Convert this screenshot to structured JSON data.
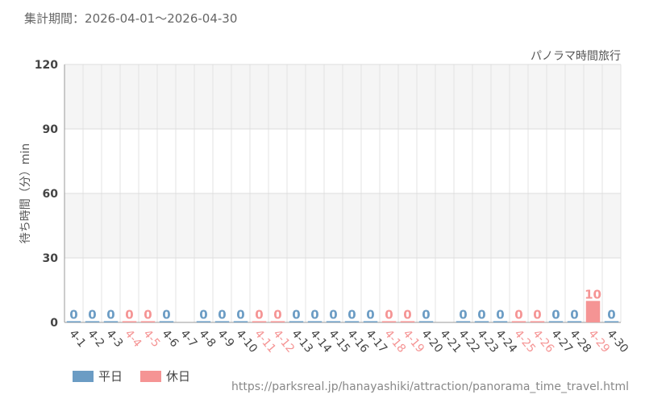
{
  "header": {
    "period_label": "集計期間",
    "period_range": "2026-04-01〜2026-04-30"
  },
  "legend": {
    "weekday_label": "平日",
    "holiday_label": "休日"
  },
  "source_url": "https://parksreal.jp/hanayashiki/attraction/panorama_time_travel.html",
  "colors": {
    "weekday": "#6b9cc4",
    "holiday": "#f59494",
    "band": "#f5f5f5",
    "grid": "#e3e3e3"
  },
  "chart_data": {
    "type": "bar",
    "title": "パノラマ時間旅行",
    "xlabel": "",
    "ylabel": "待ち時間（分）min",
    "ylim": [
      0,
      120
    ],
    "yticks": [
      0,
      30,
      60,
      90,
      120
    ],
    "grid": true,
    "legend_position": "bottom-left",
    "categories": [
      "4-1",
      "4-2",
      "4-3",
      "4-4",
      "4-5",
      "4-6",
      "4-7",
      "4-8",
      "4-9",
      "4-10",
      "4-11",
      "4-12",
      "4-13",
      "4-14",
      "4-15",
      "4-16",
      "4-17",
      "4-18",
      "4-19",
      "4-20",
      "4-21",
      "4-22",
      "4-23",
      "4-24",
      "4-25",
      "4-26",
      "4-27",
      "4-28",
      "4-29",
      "4-30"
    ],
    "day_types": [
      "weekday",
      "weekday",
      "weekday",
      "holiday",
      "holiday",
      "weekday",
      "weekday",
      "weekday",
      "weekday",
      "weekday",
      "holiday",
      "holiday",
      "weekday",
      "weekday",
      "weekday",
      "weekday",
      "weekday",
      "holiday",
      "holiday",
      "weekday",
      "weekday",
      "weekday",
      "weekday",
      "weekday",
      "holiday",
      "holiday",
      "weekday",
      "weekday",
      "holiday",
      "weekday"
    ],
    "series": [
      {
        "name": "",
        "values": [
          0,
          0,
          0,
          0,
          0,
          0,
          null,
          0,
          0,
          0,
          0,
          0,
          0,
          0,
          0,
          0,
          0,
          0,
          0,
          0,
          null,
          0,
          0,
          0,
          0,
          0,
          0,
          0,
          10,
          0
        ]
      }
    ]
  }
}
